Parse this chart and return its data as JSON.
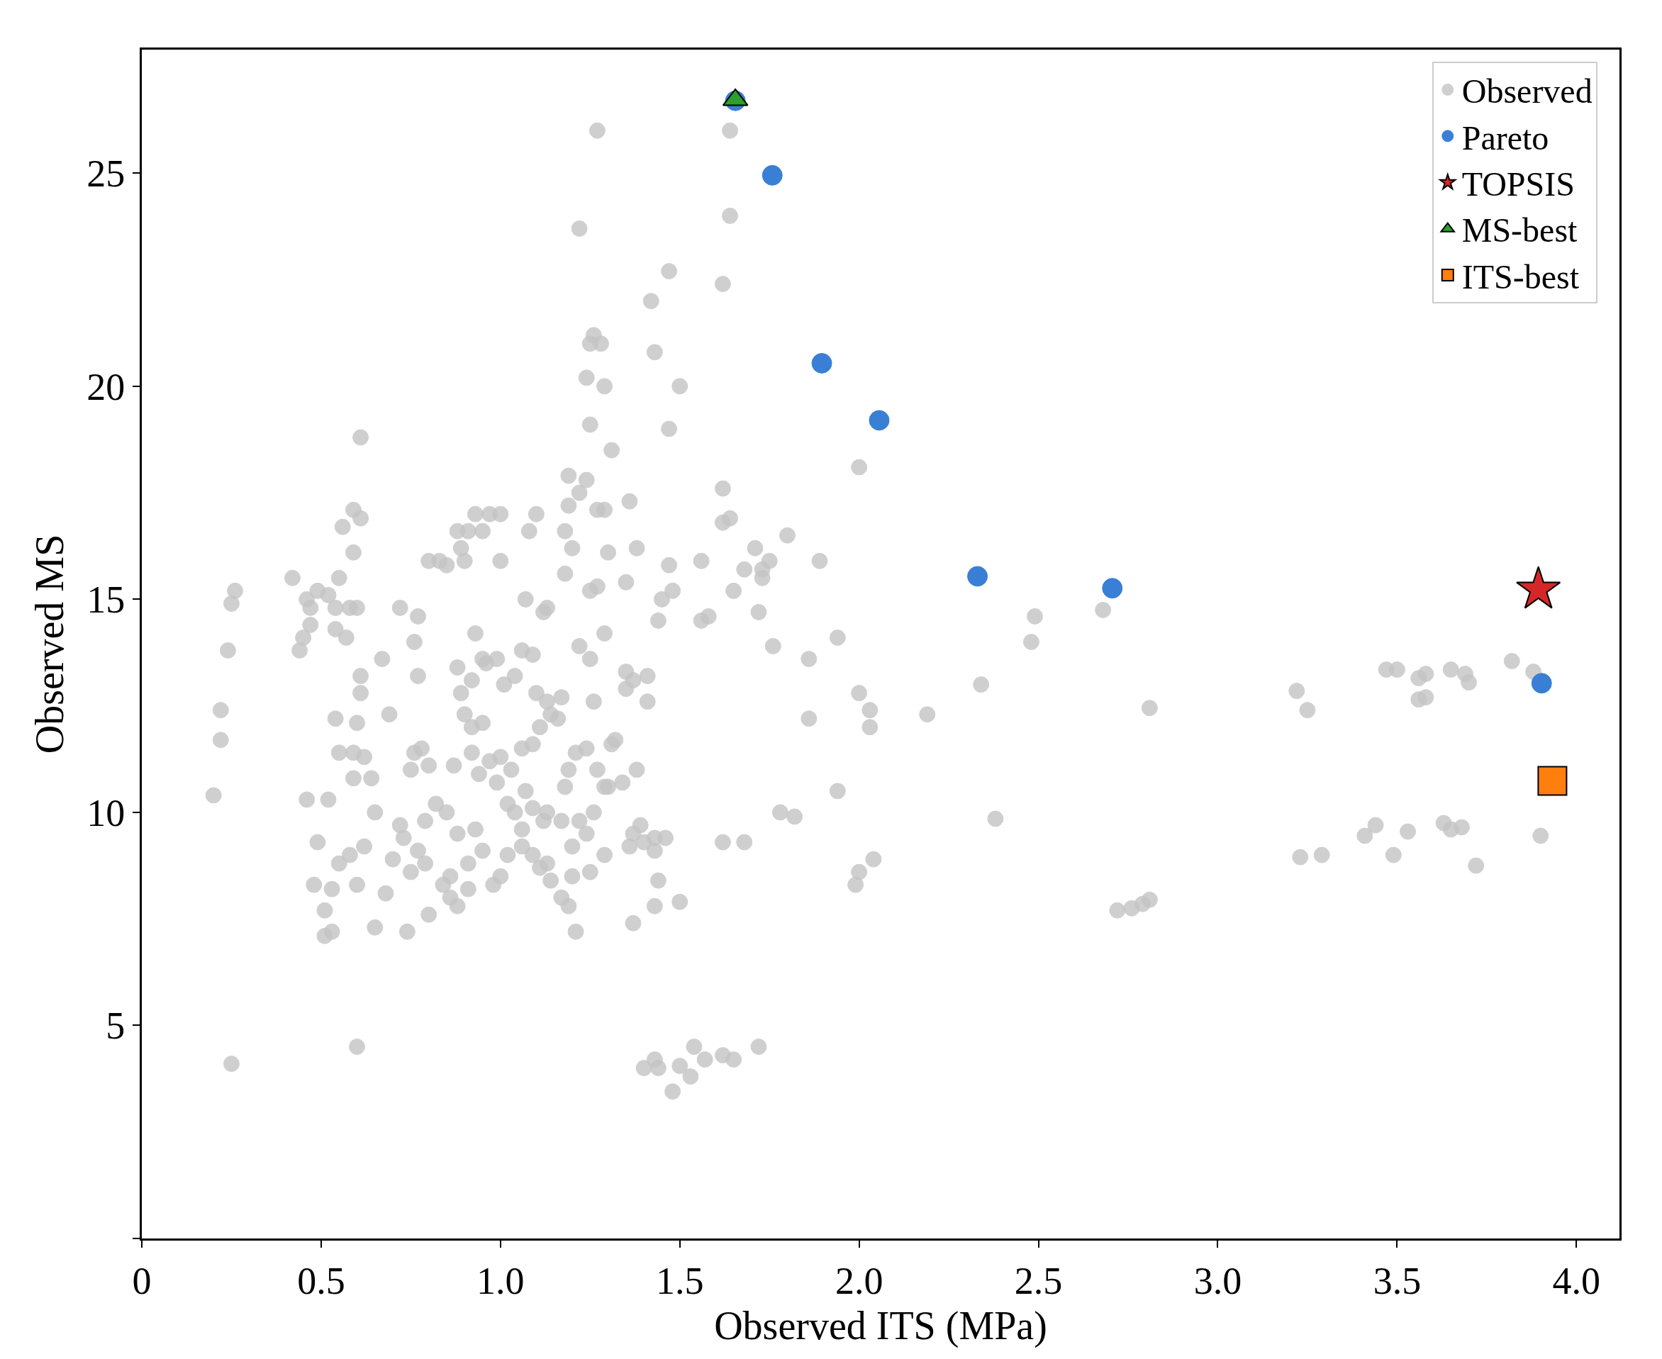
{
  "chart_data": {
    "type": "scatter",
    "xlabel": "Observed ITS (MPa)",
    "ylabel": "Observed MS",
    "xlim": [
      0,
      4.12
    ],
    "ylim": [
      0,
      27.9
    ],
    "xticks": [
      0,
      {
        "value": 0.5,
        "label": "0.5"
      },
      {
        "value": 1,
        "label": "1.0"
      },
      {
        "value": 1.5,
        "label": "1.5"
      },
      {
        "value": 2,
        "label": "2.0"
      },
      {
        "value": 2.5,
        "label": "2.5"
      },
      {
        "value": 3,
        "label": "3.0"
      },
      {
        "value": 3.5,
        "label": "3.5"
      },
      {
        "value": 4,
        "label": "4.0"
      }
    ],
    "yticks": [
      {
        "value": 0,
        "label": null
      },
      5,
      10,
      15,
      20,
      25
    ],
    "legend": "top right",
    "series": [
      {
        "name": "Observed",
        "color": "#c4c4c4",
        "marker": "circle",
        "x": [
          3.22,
          3.25,
          3.47,
          3.5,
          3.56,
          3.58,
          3.56,
          3.58,
          3.65,
          3.69,
          3.7,
          3.82,
          3.88,
          3.23,
          3.29,
          3.41,
          3.44,
          3.49,
          3.53,
          3.63,
          3.65,
          3.68,
          3.72,
          3.9,
          2.72,
          2.76,
          2.79,
          2.81,
          2.68,
          2.48,
          2.49,
          2.34,
          2.38,
          2.19,
          2.81,
          2.03,
          2.03,
          2.0,
          2.04,
          1.99,
          2.0,
          1.94,
          1.94,
          2.0,
          1.89,
          1.86,
          1.86,
          1.78,
          1.82,
          1.68,
          1.62,
          1.8,
          1.75,
          1.71,
          1.73,
          1.73,
          1.68,
          1.65,
          1.72,
          1.76,
          1.62,
          1.64,
          1.62,
          1.62,
          1.64,
          1.64,
          1.27,
          1.22,
          1.47,
          1.42,
          1.43,
          1.26,
          1.25,
          1.28,
          1.24,
          1.29,
          1.5,
          1.47,
          1.25,
          1.31,
          0.61,
          1.19,
          1.24,
          1.22,
          1.19,
          1.27,
          1.29,
          1.36,
          1.18,
          1.2,
          1.3,
          1.38,
          1.47,
          1.56,
          1.45,
          1.48,
          1.58,
          1.56,
          1.44,
          1.29,
          1.35,
          1.25,
          1.27,
          1.18,
          1.13,
          1.12,
          1.07,
          1.08,
          1.1,
          1.0,
          0.97,
          0.93,
          0.95,
          0.91,
          0.88,
          0.89,
          0.9,
          0.85,
          0.83,
          0.8,
          1.0,
          0.59,
          0.61,
          0.56,
          0.59,
          0.52,
          0.55,
          0.49,
          0.46,
          0.42,
          0.47,
          0.54,
          0.58,
          0.6,
          0.26,
          0.25,
          0.24,
          0.45,
          0.44,
          0.47,
          0.54,
          0.57,
          0.22,
          0.22,
          0.2,
          0.61,
          0.67,
          0.61,
          0.54,
          0.6,
          0.55,
          0.59,
          0.62,
          0.64,
          0.59,
          0.46,
          0.52,
          0.49,
          0.48,
          0.53,
          0.51,
          0.51,
          0.53,
          0.55,
          0.58,
          0.62,
          0.6,
          0.65,
          0.69,
          0.72,
          0.77,
          0.77,
          0.76,
          0.65,
          0.68,
          0.7,
          0.73,
          0.74,
          0.72,
          0.76,
          0.78,
          0.75,
          0.8,
          0.82,
          0.79,
          0.77,
          0.75,
          0.79,
          0.8,
          0.84,
          0.86,
          0.88,
          0.86,
          0.88,
          0.85,
          0.87,
          0.89,
          0.9,
          0.88,
          0.92,
          0.93,
          0.95,
          0.99,
          0.96,
          1.01,
          1.04,
          1.06,
          1.09,
          1.1,
          1.13,
          1.14,
          1.17,
          1.16,
          1.11,
          1.09,
          1.06,
          1.03,
          1.0,
          0.97,
          0.94,
          0.92,
          0.95,
          0.92,
          0.99,
          1.02,
          1.04,
          1.07,
          1.09,
          1.12,
          1.13,
          1.06,
          1.02,
          1.0,
          0.98,
          0.95,
          0.91,
          0.91,
          0.93,
          1.06,
          1.09,
          1.11,
          1.13,
          1.14,
          1.17,
          1.19,
          1.2,
          1.2,
          1.17,
          1.21,
          1.22,
          1.24,
          1.26,
          1.25,
          1.29,
          1.29,
          1.3,
          1.27,
          1.24,
          1.21,
          1.19,
          1.18,
          1.31,
          1.34,
          1.32,
          1.35,
          1.35,
          1.37,
          1.41,
          1.41,
          1.26,
          1.22,
          1.25,
          1.38,
          1.37,
          1.39,
          1.36,
          1.4,
          1.43,
          1.43,
          1.44,
          1.43,
          1.5,
          1.37,
          1.46,
          1.4,
          1.43,
          1.44,
          1.48,
          1.5,
          1.53,
          1.54,
          1.57,
          1.62,
          1.65,
          1.72,
          0.25,
          0.6
        ],
        "values": [
          12.85,
          12.4,
          13.35,
          13.35,
          13.15,
          13.25,
          12.65,
          12.7,
          13.35,
          13.25,
          13.05,
          13.55,
          13.3,
          8.95,
          9.0,
          9.45,
          9.7,
          9.0,
          9.55,
          9.75,
          9.6,
          9.65,
          8.75,
          9.45,
          7.7,
          7.75,
          7.85,
          7.95,
          14.75,
          14.0,
          14.6,
          13.0,
          9.85,
          12.3,
          12.45,
          12.4,
          12.0,
          12.8,
          8.9,
          8.3,
          8.6,
          14.1,
          10.5,
          18.1,
          15.9,
          13.6,
          12.2,
          10.0,
          9.9,
          9.3,
          9.3,
          16.5,
          15.9,
          16.2,
          15.7,
          15.5,
          15.7,
          15.2,
          14.7,
          13.9,
          16.8,
          16.9,
          17.6,
          22.4,
          24.0,
          26.0,
          26.0,
          23.7,
          22.7,
          22.0,
          20.8,
          21.2,
          21.0,
          21.0,
          20.2,
          20.0,
          20.0,
          19.0,
          19.1,
          18.5,
          18.8,
          17.9,
          17.8,
          17.5,
          17.2,
          17.1,
          17.1,
          17.3,
          16.6,
          16.2,
          16.1,
          16.2,
          15.8,
          15.9,
          15.0,
          15.2,
          14.6,
          14.5,
          14.5,
          14.2,
          15.4,
          15.2,
          15.3,
          15.6,
          14.8,
          14.7,
          15.0,
          16.6,
          17.0,
          17.0,
          17.0,
          17.0,
          16.6,
          16.6,
          16.6,
          16.2,
          15.9,
          15.8,
          15.9,
          15.9,
          15.9,
          17.1,
          16.9,
          16.7,
          16.1,
          15.1,
          15.5,
          15.2,
          15.0,
          15.5,
          14.8,
          14.8,
          14.8,
          14.8,
          15.2,
          14.9,
          13.8,
          14.1,
          13.8,
          14.4,
          14.3,
          14.1,
          12.4,
          11.7,
          10.4,
          13.2,
          13.6,
          12.8,
          12.2,
          12.1,
          11.4,
          11.4,
          11.3,
          10.8,
          10.8,
          10.3,
          10.3,
          9.3,
          8.3,
          8.2,
          7.7,
          7.1,
          7.2,
          8.8,
          9.0,
          9.2,
          8.3,
          10.0,
          12.3,
          14.8,
          14.6,
          13.2,
          14.0,
          7.3,
          8.1,
          8.9,
          9.4,
          7.2,
          9.7,
          11.4,
          11.5,
          11.0,
          11.1,
          10.2,
          9.8,
          9.1,
          8.6,
          8.8,
          7.6,
          8.3,
          8.0,
          7.8,
          8.5,
          9.5,
          10.0,
          11.1,
          12.8,
          12.3,
          13.4,
          13.1,
          14.2,
          13.6,
          13.6,
          13.5,
          13.0,
          13.2,
          13.8,
          13.7,
          12.8,
          12.6,
          12.3,
          12.7,
          12.2,
          12.0,
          11.6,
          11.5,
          11.0,
          11.3,
          11.2,
          10.9,
          11.4,
          12.1,
          12.0,
          10.7,
          10.2,
          10.0,
          10.5,
          10.1,
          9.8,
          10.0,
          9.6,
          9.0,
          8.5,
          8.3,
          9.1,
          8.8,
          8.2,
          9.6,
          9.2,
          9.0,
          8.7,
          8.8,
          8.4,
          8.0,
          7.8,
          8.5,
          9.2,
          9.8,
          7.2,
          9.8,
          9.5,
          10.0,
          8.6,
          9.0,
          10.6,
          10.6,
          11.0,
          11.5,
          11.4,
          11.0,
          10.6,
          11.6,
          10.7,
          11.7,
          12.9,
          13.3,
          13.1,
          13.2,
          12.6,
          12.6,
          13.9,
          13.6,
          11.0,
          9.5,
          9.7,
          9.2,
          9.3,
          9.4,
          9.1,
          8.4,
          7.8,
          7.9,
          7.4,
          9.4,
          4.0,
          4.2,
          4.0,
          3.45,
          4.05,
          3.8,
          4.5,
          4.2,
          4.3,
          4.2,
          4.5,
          4.1,
          4.5
        ]
      },
      {
        "name": "Pareto",
        "color": "#3a7fd6",
        "marker": "circle",
        "x": [
          1.655,
          1.758,
          1.896,
          2.056,
          2.33,
          2.706,
          3.903
        ],
        "values": [
          26.7,
          24.95,
          20.54,
          19.2,
          15.54,
          15.26,
          13.03
        ]
      },
      {
        "name": "TOPSIS",
        "color": "#d62728",
        "marker": "star",
        "x": [
          3.894
        ],
        "values": [
          15.23
        ]
      },
      {
        "name": "MS-best",
        "color": "#2ca02c",
        "marker": "triangle",
        "x": [
          1.655
        ],
        "values": [
          26.72
        ]
      },
      {
        "name": "ITS-best",
        "color": "#ff7f0e",
        "marker": "square",
        "x": [
          3.933
        ],
        "values": [
          10.74
        ]
      }
    ]
  }
}
